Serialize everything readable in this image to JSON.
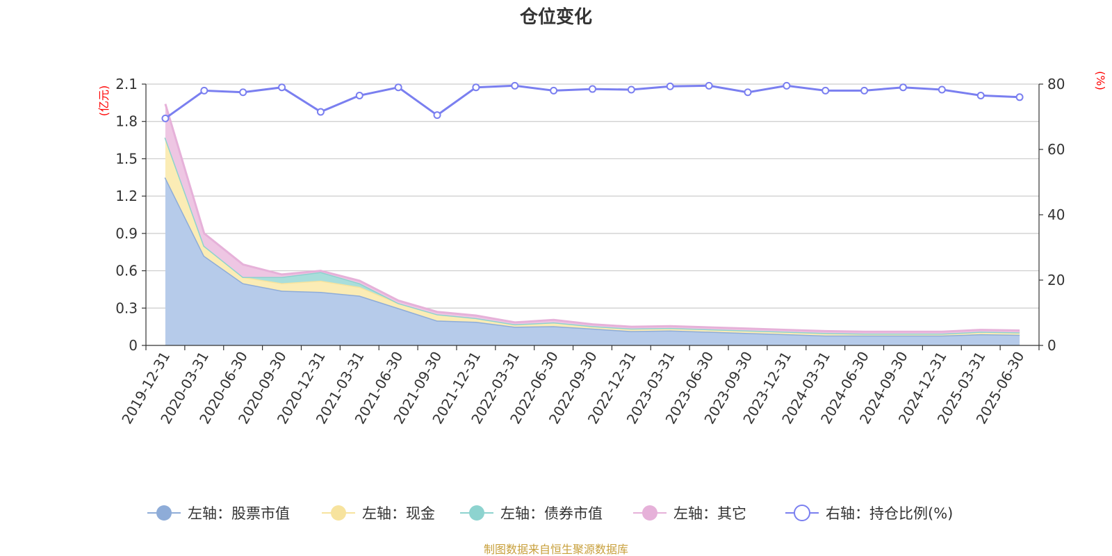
{
  "chart_data": {
    "type": "area",
    "title": "仓位变化",
    "source": "制图数据来自恒生聚源数据库",
    "left_axis": {
      "unit": "(亿元)",
      "ylim": [
        0,
        2.1
      ],
      "ticks": [
        "0",
        "0.3",
        "0.6",
        "0.9",
        "1.2",
        "1.5",
        "1.8",
        "2.1"
      ]
    },
    "right_axis": {
      "unit": "(%)",
      "ylim": [
        0,
        80
      ],
      "ticks": [
        "0",
        "20",
        "40",
        "60",
        "80"
      ]
    },
    "grid": true,
    "legend_position": "bottom",
    "categories": [
      "2019-12-31",
      "2020-03-31",
      "2020-06-30",
      "2020-09-30",
      "2020-12-31",
      "2021-03-31",
      "2021-06-30",
      "2021-09-30",
      "2021-12-31",
      "2022-03-31",
      "2022-06-30",
      "2022-09-30",
      "2022-12-31",
      "2023-03-31",
      "2023-06-30",
      "2023-09-30",
      "2023-12-31",
      "2024-03-31",
      "2024-06-30",
      "2024-09-30",
      "2024-12-31",
      "2025-03-31",
      "2025-06-30"
    ],
    "series": [
      {
        "name": "左轴：股票市值",
        "axis": "left",
        "kind": "area",
        "color": "#8eacd8",
        "fill": "#b6cbea",
        "values": [
          1.35,
          0.72,
          0.5,
          0.44,
          0.43,
          0.4,
          0.3,
          0.2,
          0.19,
          0.15,
          0.155,
          0.135,
          0.115,
          0.12,
          0.11,
          0.1,
          0.09,
          0.08,
          0.08,
          0.08,
          0.08,
          0.09,
          0.085
        ]
      },
      {
        "name": "左轴：现金",
        "axis": "left",
        "kind": "area",
        "color": "#f7e39e",
        "fill": "#fbecb5",
        "values": [
          0.32,
          0.08,
          0.05,
          0.06,
          0.09,
          0.07,
          0.04,
          0.05,
          0.03,
          0.02,
          0.03,
          0.02,
          0.02,
          0.02,
          0.02,
          0.02,
          0.02,
          0.02,
          0.015,
          0.015,
          0.015,
          0.02,
          0.02
        ]
      },
      {
        "name": "左轴：债券市值",
        "axis": "left",
        "kind": "area",
        "color": "#8dd3cf",
        "fill": "#a9dedb",
        "values": [
          0,
          0,
          0,
          0.05,
          0.07,
          0.03,
          0,
          0,
          0,
          0,
          0,
          0,
          0,
          0,
          0,
          0,
          0,
          0,
          0,
          0,
          0,
          0,
          0
        ]
      },
      {
        "name": "左轴：其它",
        "axis": "left",
        "kind": "area",
        "color": "#e6b1d9",
        "fill": "#eec6e3",
        "values": [
          0.27,
          0.1,
          0.1,
          0.02,
          0.01,
          0.02,
          0.02,
          0.02,
          0.02,
          0.015,
          0.02,
          0.015,
          0.015,
          0.015,
          0.015,
          0.015,
          0.015,
          0.015,
          0.015,
          0.015,
          0.015,
          0.015,
          0.015
        ]
      },
      {
        "name": "右轴：持仓比例(%)",
        "axis": "right",
        "kind": "line",
        "color": "#7a7ff0",
        "values": [
          69.5,
          78,
          77.5,
          79,
          71.5,
          76.5,
          79,
          70.5,
          79,
          79.5,
          78,
          78.5,
          78.3,
          79.3,
          79.5,
          77.5,
          79.5,
          78,
          78,
          79,
          78.3,
          76.5,
          76
        ]
      }
    ]
  }
}
